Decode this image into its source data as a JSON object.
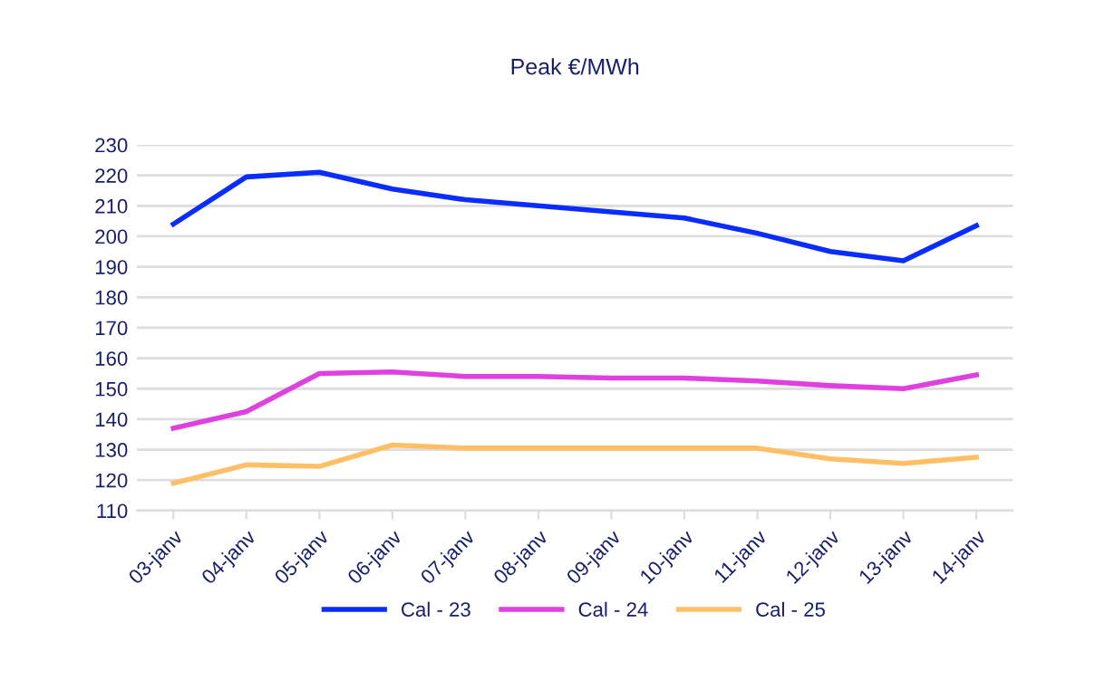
{
  "chart_data": {
    "type": "line",
    "title": "Peak €/MWh",
    "categories": [
      "03-janv",
      "04-janv",
      "05-janv",
      "06-janv",
      "07-janv",
      "08-janv",
      "09-janv",
      "10-janv",
      "11-janv",
      "12-janv",
      "13-janv",
      "14-janv"
    ],
    "series": [
      {
        "name": "Cal - 23",
        "color": "#0a2dff",
        "values": [
          204,
          219.5,
          221,
          215.5,
          212,
          210,
          208,
          206,
          201,
          195,
          192,
          203.5
        ]
      },
      {
        "name": "Cal - 24",
        "color": "#e040e0",
        "values": [
          137,
          142.5,
          155,
          155.5,
          154,
          154,
          153.5,
          153.5,
          152.5,
          151,
          150,
          154.5
        ]
      },
      {
        "name": "Cal - 25",
        "color": "#ffbf66",
        "values": [
          119,
          125,
          124.5,
          131.5,
          130.5,
          130.5,
          130.5,
          130.5,
          130.5,
          127,
          125.5,
          127.5
        ]
      }
    ],
    "ylim": [
      110,
      230
    ],
    "yticks": [
      110,
      120,
      130,
      140,
      150,
      160,
      170,
      180,
      190,
      200,
      210,
      220,
      230
    ],
    "grid": "y",
    "legend": "bottom",
    "marker": "none",
    "line_style": "solid"
  }
}
